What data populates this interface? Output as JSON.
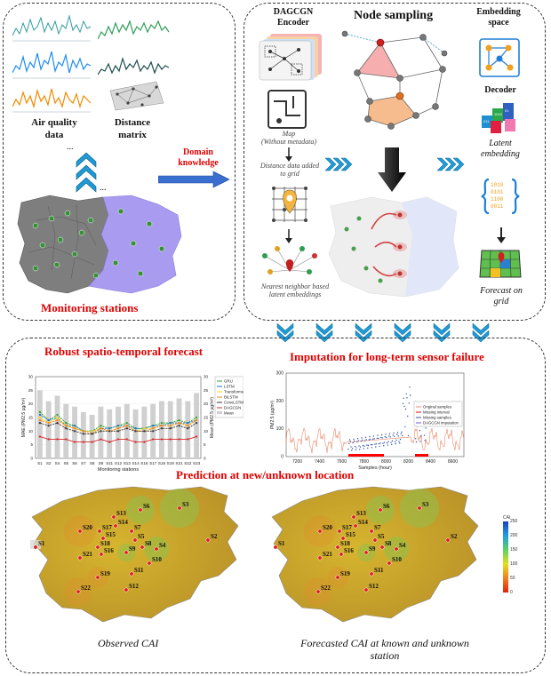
{
  "top_left": {
    "air_quality_label": "Air quality\ndata",
    "distance_matrix_label": "Distance\nmatrix",
    "monitoring_stations_label": "Monitoring stations",
    "dots": "..."
  },
  "domain_knowledge": "Domain\nknowledge",
  "top_right": {
    "encoder_title": "DAGCGN\nEncoder",
    "node_sampling_title": "Node sampling",
    "embedding_space_title": "Embedding\nspace",
    "map_caption": "Map\n(Without metadata)",
    "distance_caption": "Distance data added\nto grid",
    "nn_caption": "Nearest neighbor based\nlatent embeddings",
    "decoder_label": "Decoder",
    "latent_label": "Latent\nembedding",
    "forecast_grid_label": "Forecast on\ngrid"
  },
  "bottom": {
    "robust_title": "Robust spatio-temporal forecast",
    "imputation_title": "Imputation for long-term sensor failure",
    "prediction_title": "Prediction at new/unknown location",
    "observed_caption": "Observed CAI",
    "forecasted_caption": "Forecasted CAI at known and unknown\nstation"
  },
  "chart_data": [
    {
      "type": "bar",
      "title": "",
      "xlabel": "Monitoring stations",
      "ylabel": "MAE (PM2.5 µg/m³)",
      "y2label": "Mean (PM2.5 µg/m³)",
      "categories": [
        "S1",
        "S2",
        "S4",
        "S5",
        "S6",
        "S7",
        "S8",
        "S9",
        "S11",
        "S12",
        "S13",
        "S14",
        "S16",
        "S17",
        "S18",
        "S19",
        "S21",
        "S22",
        "S23"
      ],
      "series": [
        {
          "name": "GRU",
          "color": "#2ca02c",
          "values": [
            17,
            14,
            16,
            13,
            12,
            10,
            10,
            12,
            11,
            12,
            13,
            11,
            11,
            12,
            13,
            13,
            14,
            13,
            15
          ]
        },
        {
          "name": "LSTM",
          "color": "#1f77b4",
          "values": [
            16,
            14,
            15,
            12,
            12,
            10,
            10,
            11,
            11,
            12,
            12,
            11,
            11,
            12,
            12,
            13,
            13,
            13,
            14
          ]
        },
        {
          "name": "Transformer",
          "color": "#ffd700",
          "values": [
            15,
            13,
            15,
            12,
            11,
            10,
            10,
            11,
            10,
            11,
            12,
            10,
            11,
            11,
            12,
            12,
            13,
            12,
            14
          ]
        },
        {
          "name": "BiLSTM",
          "color": "#ff7f0e",
          "values": [
            14,
            13,
            14,
            12,
            11,
            10,
            9,
            11,
            10,
            11,
            12,
            10,
            10,
            11,
            12,
            12,
            13,
            12,
            14
          ]
        },
        {
          "name": "ConvLSTM",
          "color": "#333333",
          "values": [
            13,
            12,
            13,
            11,
            10,
            9,
            9,
            10,
            10,
            10,
            11,
            10,
            10,
            10,
            11,
            11,
            12,
            11,
            13
          ]
        },
        {
          "name": "DAGCGN",
          "color": "#d62728",
          "values": [
            8,
            7,
            7,
            7,
            6,
            6,
            6,
            7,
            6,
            7,
            7,
            6,
            6,
            7,
            7,
            7,
            7,
            7,
            8
          ]
        },
        {
          "name": "Mean",
          "color": "#d0d0d0",
          "values": [
            25,
            21,
            23,
            20,
            19,
            17,
            16,
            19,
            18,
            19,
            20,
            18,
            19,
            20,
            21,
            21,
            22,
            21,
            24
          ]
        }
      ],
      "ylim": [
        0,
        30
      ]
    },
    {
      "type": "line",
      "xlabel": "Samples (hour)",
      "ylabel": "PM2.5 (µg/m³)",
      "x_ticks": [
        7200,
        7400,
        7600,
        7800,
        8000,
        8200,
        8400,
        8600
      ],
      "y_ticks": [
        0,
        100,
        200,
        300
      ],
      "xlim": [
        7100,
        8700
      ],
      "ylim": [
        0,
        300
      ],
      "legend": [
        "Original samples",
        "Missing interval",
        "Missing samples",
        "DAGCGN imputation"
      ],
      "legend_colors": [
        "#e88a6a",
        "#ff0000",
        "#3050a0",
        "#6a5acd"
      ]
    },
    {
      "type": "heatmap",
      "title": "CAI",
      "colorbar_ticks": [
        "0",
        "50",
        "100",
        "150",
        "200",
        "250"
      ],
      "stations_observed": [
        "S3",
        "S6",
        "S13",
        "S14",
        "S20",
        "S17",
        "S15",
        "S18",
        "S16",
        "S7",
        "S5",
        "S8",
        "S4",
        "S9",
        "S21",
        "S10",
        "S2",
        "S11",
        "S19",
        "S1",
        "S22",
        "S12"
      ],
      "stations_forecast": [
        "S3",
        "S6",
        "S13",
        "S14",
        "S20",
        "S17",
        "S15",
        "S18",
        "S16",
        "S7",
        "S5",
        "S8",
        "S4",
        "S9",
        "S21",
        "S10",
        "S2",
        "S11",
        "S19",
        "S1",
        "S22",
        "S12"
      ]
    }
  ]
}
